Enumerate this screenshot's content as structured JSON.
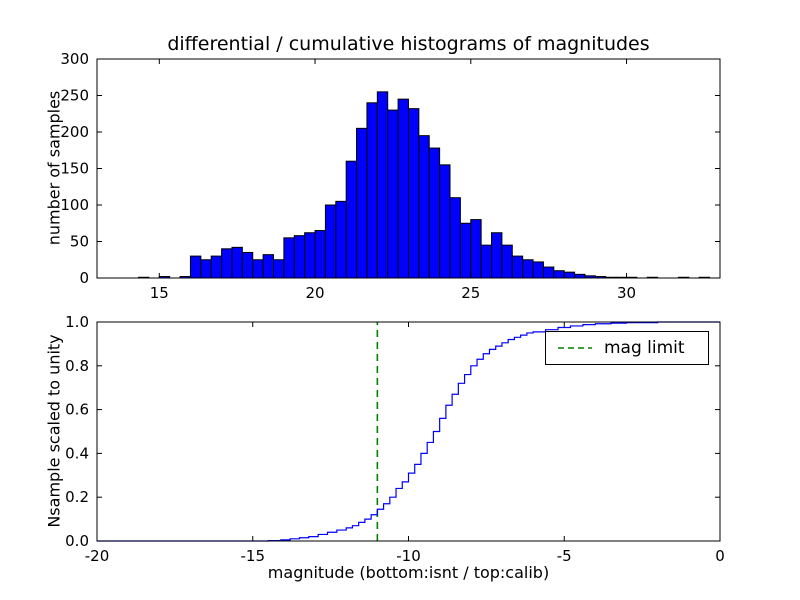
{
  "figure": {
    "background": "#ffffff",
    "axes_color": "#000000"
  },
  "chart_data": [
    {
      "type": "bar",
      "name": "differential-histogram",
      "title": "differential / cumulative histograms of magnitudes",
      "xlabel": "",
      "ylabel": "number of samples",
      "xlim": [
        13,
        33
      ],
      "ylim": [
        0,
        300
      ],
      "xticks": [
        15,
        20,
        25,
        30
      ],
      "xticklabels": [
        "15",
        "20",
        "25",
        "30"
      ],
      "yticks": [
        0,
        50,
        100,
        150,
        200,
        250,
        300
      ],
      "yticklabels": [
        "0",
        "50",
        "100",
        "150",
        "200",
        "250",
        "300"
      ],
      "bar_color": "#0000ff",
      "bar_edge_color": "#000000",
      "grid": false,
      "bin_start": 14.0,
      "bin_width": 0.3333,
      "values": [
        0,
        1,
        0,
        2,
        0,
        2,
        30,
        25,
        30,
        40,
        42,
        35,
        25,
        32,
        25,
        55,
        58,
        62,
        65,
        100,
        105,
        160,
        205,
        240,
        255,
        230,
        245,
        232,
        195,
        178,
        155,
        110,
        75,
        80,
        45,
        62,
        45,
        30,
        25,
        22,
        15,
        10,
        8,
        5,
        3,
        2,
        1,
        1,
        1,
        0,
        1,
        0,
        0,
        1,
        0,
        1,
        0
      ]
    },
    {
      "type": "line",
      "name": "cumulative-histogram",
      "title": "",
      "xlabel": "magnitude (bottom:isnt / top:calib)",
      "ylabel": "Nsample scaled to unity",
      "xlim": [
        -20,
        0
      ],
      "ylim": [
        0,
        1.0
      ],
      "xticks": [
        -20,
        -15,
        -10,
        -5,
        0
      ],
      "xticklabels": [
        "-20",
        "-15",
        "-10",
        "-5",
        "0"
      ],
      "yticks": [
        0.0,
        0.2,
        0.4,
        0.6,
        0.8,
        1.0
      ],
      "yticklabels": [
        "0.0",
        "0.2",
        "0.4",
        "0.6",
        "0.8",
        "1.0"
      ],
      "line_color": "#0000ff",
      "step": true,
      "grid": false,
      "x": [
        -20,
        -14.5,
        -14.1,
        -13.8,
        -13.5,
        -13.2,
        -12.9,
        -12.6,
        -12.3,
        -12.0,
        -11.8,
        -11.6,
        -11.4,
        -11.2,
        -11.0,
        -10.8,
        -10.6,
        -10.4,
        -10.2,
        -10.0,
        -9.8,
        -9.6,
        -9.4,
        -9.2,
        -9.0,
        -8.8,
        -8.6,
        -8.4,
        -8.2,
        -8.0,
        -7.8,
        -7.6,
        -7.4,
        -7.2,
        -7.0,
        -6.8,
        -6.6,
        -6.4,
        -6.2,
        -6.0,
        -5.6,
        -5.2,
        -4.8,
        -4.4,
        -4.0,
        -3.5,
        -3.0,
        -2.0,
        0
      ],
      "y": [
        0,
        0.002,
        0.005,
        0.01,
        0.015,
        0.02,
        0.03,
        0.04,
        0.05,
        0.06,
        0.07,
        0.085,
        0.1,
        0.12,
        0.145,
        0.17,
        0.2,
        0.24,
        0.27,
        0.31,
        0.35,
        0.4,
        0.45,
        0.5,
        0.56,
        0.62,
        0.67,
        0.72,
        0.76,
        0.8,
        0.83,
        0.855,
        0.875,
        0.89,
        0.905,
        0.92,
        0.93,
        0.94,
        0.95,
        0.955,
        0.965,
        0.975,
        0.982,
        0.988,
        0.992,
        0.995,
        0.997,
        1.0,
        1.0
      ],
      "vline": {
        "x": -11,
        "color": "#008000",
        "style": "dashed",
        "label": "mag limit"
      },
      "legend": {
        "position": "upper right",
        "entries": [
          {
            "label": "mag limit",
            "color": "#008000",
            "dash": true
          }
        ]
      }
    }
  ]
}
